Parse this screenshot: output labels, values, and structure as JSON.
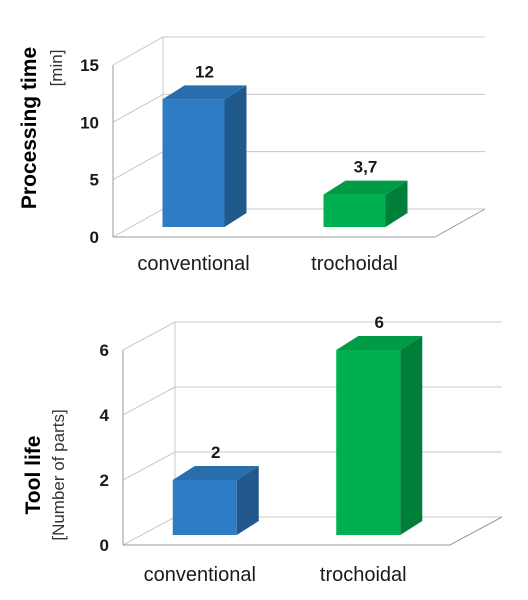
{
  "chart_data": [
    {
      "type": "bar",
      "categories": [
        "conventional",
        "trochoidal"
      ],
      "values": [
        12,
        3.7
      ],
      "value_labels": [
        "12",
        "3,7"
      ],
      "ylabel": "Processing time",
      "yunit": "[min]",
      "ylim": [
        0,
        15
      ],
      "yticks": [
        "0",
        "5",
        "10",
        "15"
      ],
      "grid": true,
      "colors": [
        "#2e7cc4",
        "#00b050"
      ]
    },
    {
      "type": "bar",
      "categories": [
        "conventional",
        "trochoidal"
      ],
      "values": [
        2,
        6
      ],
      "value_labels": [
        "2",
        "6"
      ],
      "ylabel": "Tool life",
      "yunit": "[Number of parts]",
      "ylim": [
        0,
        6
      ],
      "yticks": [
        "0",
        "2",
        "4",
        "6"
      ],
      "grid": true,
      "colors": [
        "#2e7cc4",
        "#00b050"
      ]
    }
  ]
}
